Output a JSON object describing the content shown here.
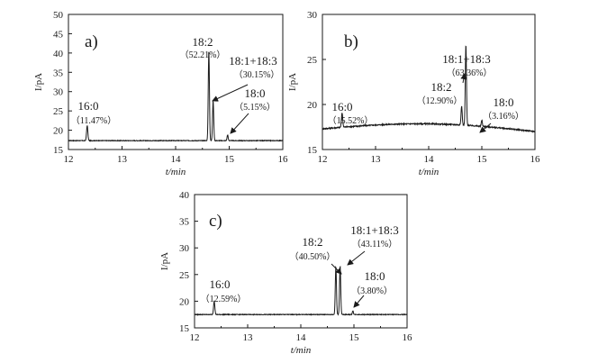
{
  "chart_data": [
    {
      "type": "line",
      "panel_label": "a)",
      "xlabel": "t/min",
      "ylabel": "I/pA",
      "xlim": [
        12,
        16
      ],
      "ylim": [
        15,
        50
      ],
      "xticks": [
        12,
        13,
        14,
        15,
        16
      ],
      "yticks": [
        15,
        20,
        25,
        30,
        35,
        40,
        45,
        50
      ],
      "baseline": 17.3,
      "noise": 0.08,
      "peaks": [
        {
          "name": "16:0",
          "percent": "（11.47%）",
          "x": 12.35,
          "y": 21.2
        },
        {
          "name": "18:2",
          "percent": "（52.21%）",
          "x": 14.62,
          "y": 40.5
        },
        {
          "name": "18:1+18:3",
          "percent": "（30.15%）",
          "x": 14.7,
          "y": 27.5
        },
        {
          "name": "18:0",
          "percent": "（5.15%）",
          "x": 14.97,
          "y": 18.8
        }
      ]
    },
    {
      "type": "line",
      "panel_label": "b)",
      "xlabel": "t/min",
      "ylabel": "I/pA",
      "xlim": [
        12,
        16
      ],
      "ylim": [
        15,
        30
      ],
      "xticks": [
        12,
        13,
        14,
        15,
        16
      ],
      "yticks": [
        15,
        20,
        25,
        30
      ],
      "baseline": 17.3,
      "noise": 0.06,
      "peaks": [
        {
          "name": "16:0",
          "percent": "（15.52%）",
          "x": 12.37,
          "y": 18.9
        },
        {
          "name": "18:2",
          "percent": "（12.90%）",
          "x": 14.62,
          "y": 19.4
        },
        {
          "name": "18:1+18:3",
          "percent": "（63.36%）",
          "x": 14.7,
          "y": 26.2
        },
        {
          "name": "18:0",
          "percent": "（3.16%）",
          "x": 15.0,
          "y": 18.0
        }
      ]
    },
    {
      "type": "line",
      "panel_label": "c)",
      "xlabel": "t/min",
      "ylabel": "I/pA",
      "xlim": [
        12,
        16
      ],
      "ylim": [
        15,
        40
      ],
      "xticks": [
        12,
        13,
        14,
        15,
        16
      ],
      "yticks": [
        15,
        20,
        25,
        30,
        35,
        40
      ],
      "baseline": 17.5,
      "noise": 0.06,
      "peaks": [
        {
          "name": "16:0",
          "percent": "（12.59%）",
          "x": 12.37,
          "y": 20.0
        },
        {
          "name": "18:2",
          "percent": "（40.50%）",
          "x": 14.66,
          "y": 26.5
        },
        {
          "name": "18:1+18:3",
          "percent": "（43.11%）",
          "x": 14.74,
          "y": 26.6
        },
        {
          "name": "18:0",
          "percent": "（3.80%）",
          "x": 14.98,
          "y": 18.2
        }
      ]
    }
  ]
}
